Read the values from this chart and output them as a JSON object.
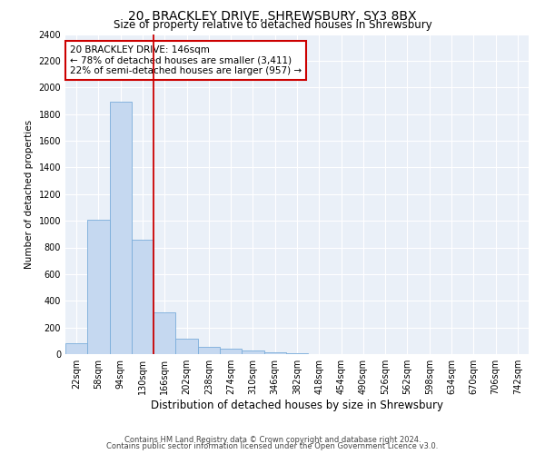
{
  "title": "20, BRACKLEY DRIVE, SHREWSBURY, SY3 8BX",
  "subtitle": "Size of property relative to detached houses in Shrewsbury",
  "xlabel": "Distribution of detached houses by size in Shrewsbury",
  "ylabel": "Number of detached properties",
  "categories": [
    "22sqm",
    "58sqm",
    "94sqm",
    "130sqm",
    "166sqm",
    "202sqm",
    "238sqm",
    "274sqm",
    "310sqm",
    "346sqm",
    "382sqm",
    "418sqm",
    "454sqm",
    "490sqm",
    "526sqm",
    "562sqm",
    "598sqm",
    "634sqm",
    "670sqm",
    "706sqm",
    "742sqm"
  ],
  "values": [
    80,
    1010,
    1890,
    860,
    310,
    115,
    55,
    42,
    25,
    15,
    5,
    0,
    0,
    0,
    0,
    0,
    0,
    0,
    0,
    0,
    0
  ],
  "bar_color": "#c5d8f0",
  "bar_edge_color": "#7aadda",
  "vline_x": 3.5,
  "vline_color": "#cc0000",
  "annotation_line1": "20 BRACKLEY DRIVE: 146sqm",
  "annotation_line2": "← 78% of detached houses are smaller (3,411)",
  "annotation_line3": "22% of semi-detached houses are larger (957) →",
  "annotation_box_color": "#ffffff",
  "annotation_box_edge": "#cc0000",
  "ylim": [
    0,
    2400
  ],
  "yticks": [
    0,
    200,
    400,
    600,
    800,
    1000,
    1200,
    1400,
    1600,
    1800,
    2000,
    2200,
    2400
  ],
  "plot_bg_color": "#eaf0f8",
  "grid_color": "#ffffff",
  "footer1": "Contains HM Land Registry data © Crown copyright and database right 2024.",
  "footer2": "Contains public sector information licensed under the Open Government Licence v3.0.",
  "title_fontsize": 10,
  "subtitle_fontsize": 8.5,
  "xlabel_fontsize": 8.5,
  "ylabel_fontsize": 7.5,
  "tick_fontsize": 7,
  "annot_fontsize": 7.5
}
